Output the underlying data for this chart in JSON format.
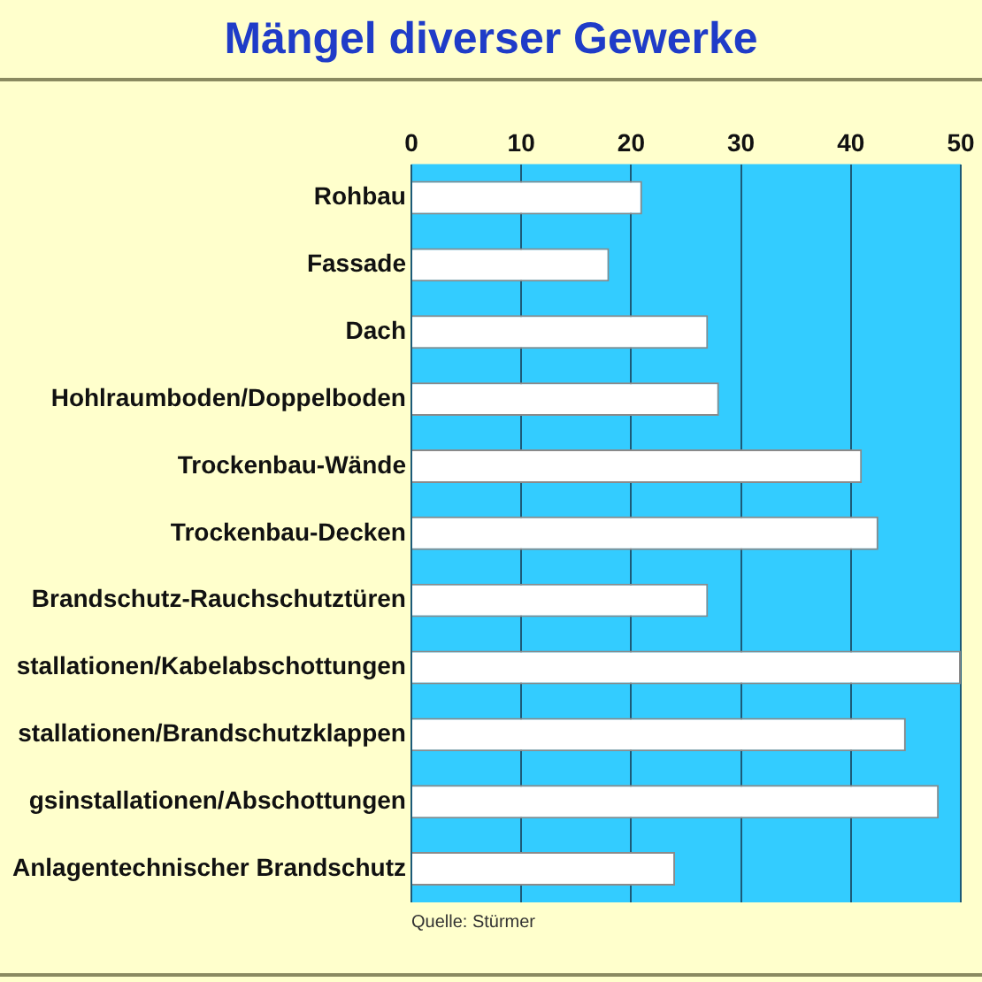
{
  "chart_data": {
    "type": "bar",
    "orientation": "horizontal",
    "title": "Mängel diverser Gewerke",
    "categories": [
      "Rohbau",
      "Fassade",
      "Dach",
      "Hohlraumboden/Doppelboden",
      "Trockenbau-Wände",
      "Trockenbau-Decken",
      "Brandschutz-Rauchschutztüren",
      "stallationen/Kabelabschottungen",
      "stallationen/Brandschutzklappen",
      "gsinstallationen/Abschottungen",
      "Anlagentechnischer Brandschutz"
    ],
    "values": [
      21,
      18,
      27,
      28,
      41,
      42.5,
      27,
      50,
      45,
      48,
      24
    ],
    "color": "#ffffff",
    "xlim": [
      0,
      50
    ],
    "xticks": [
      0,
      10,
      20,
      30,
      40,
      50
    ],
    "grid": "x",
    "annotations": [
      "Quelle: Stürmer"
    ]
  }
}
